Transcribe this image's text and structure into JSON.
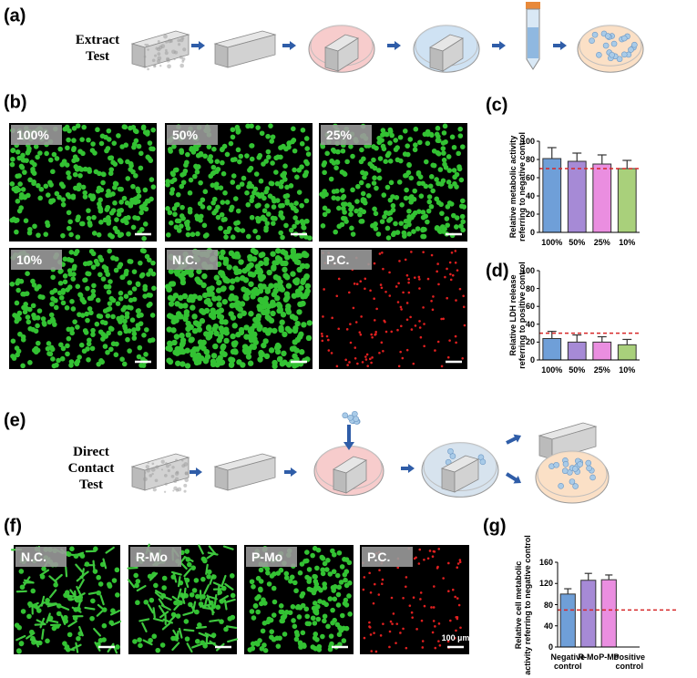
{
  "panel_labels": [
    "(a)",
    "(b)",
    "(c)",
    "(d)",
    "(e)",
    "(f)",
    "(g)"
  ],
  "extract_test": [
    "Extract",
    "Test"
  ],
  "direct_contact_test": [
    "Direct",
    "Contact",
    "Test"
  ],
  "b_images": [
    "100%",
    "50%",
    "25%",
    "10%",
    "N.C.",
    "P.C."
  ],
  "f_images": [
    "N.C.",
    "R-Mo",
    "P-Mo",
    "P.C."
  ],
  "scale_bar_label": "100 µm",
  "chart_data": [
    {
      "type": "bar",
      "y_label": [
        "Relative metabolic activity",
        "referring to negative control"
      ],
      "categories": [
        "100%",
        "50%",
        "25%",
        "10%"
      ],
      "values": [
        81,
        78,
        75,
        70
      ],
      "errors": [
        12,
        9,
        10,
        9
      ],
      "colors": [
        "#6f9fd8",
        "#a68ad6",
        "#ea8ee0",
        "#a9d07b"
      ],
      "ylim": [
        0,
        100
      ],
      "yticks": [
        0,
        20,
        40,
        60,
        80,
        100
      ],
      "threshold": 70,
      "threshold_color": "#d62728"
    },
    {
      "type": "bar",
      "y_label": [
        "Relative LDH release",
        "referring to positive control"
      ],
      "categories": [
        "100%",
        "50%",
        "25%",
        "10%"
      ],
      "values": [
        24,
        20,
        20,
        17
      ],
      "errors": [
        8,
        8,
        6,
        6
      ],
      "colors": [
        "#6f9fd8",
        "#a68ad6",
        "#ea8ee0",
        "#a9d07b"
      ],
      "ylim": [
        0,
        100
      ],
      "yticks": [
        0,
        20,
        40,
        60,
        80,
        100
      ],
      "threshold": 30,
      "threshold_color": "#d62728"
    },
    {
      "type": "bar",
      "y_label": [
        "Relative cell metabolic",
        "activity referring to negative control"
      ],
      "categories": [
        "Negative control",
        "R-Mo",
        "P-Mo",
        "Positive control"
      ],
      "values": [
        100,
        126,
        127,
        0
      ],
      "errors": [
        10,
        13,
        9,
        null
      ],
      "colors": [
        "#6f9fd8",
        "#a68ad6",
        "#ea8ee0",
        "#a9d07b"
      ],
      "ylim": [
        0,
        160
      ],
      "yticks": [
        0,
        40,
        80,
        120,
        160
      ],
      "threshold": 70,
      "threshold_color": "#d62728"
    }
  ]
}
